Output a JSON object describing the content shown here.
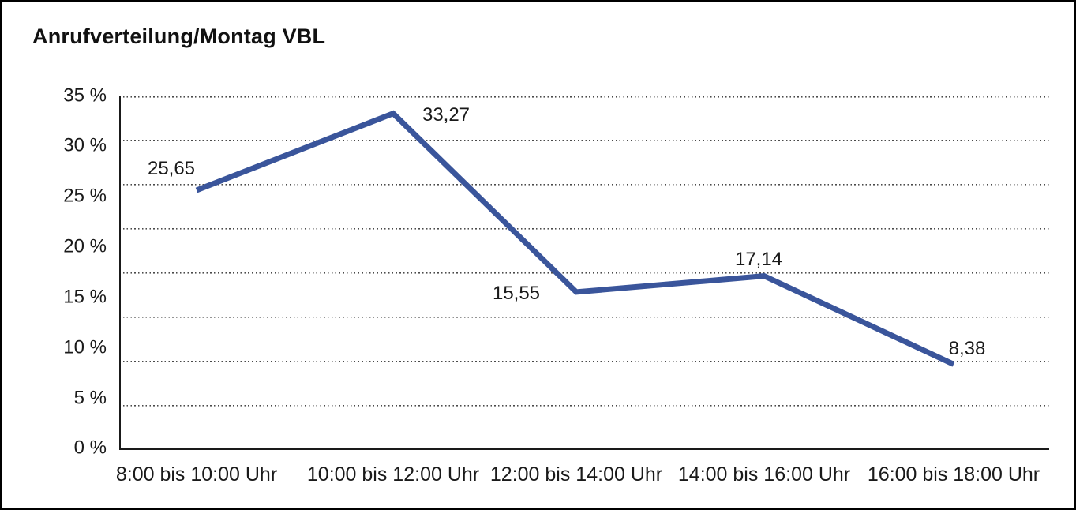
{
  "title": "Anrufverteilung/Montag VBL",
  "chart_data": {
    "type": "line",
    "title": "Anrufverteilung/Montag VBL",
    "categories": [
      "8:00 bis 10:00 Uhr",
      "10:00 bis 12:00 Uhr",
      "12:00 bis 14:00 Uhr",
      "14:00 bis 16:00 Uhr",
      "16:00 bis 18:00 Uhr"
    ],
    "values": [
      25.65,
      33.27,
      15.55,
      17.14,
      8.38
    ],
    "value_labels": [
      "25,65",
      "33,27",
      "15,55",
      "17,14",
      "8,38"
    ],
    "y_ticks": [
      "35 %",
      "30 %",
      "25 %",
      "20 %",
      "15 %",
      "10 %",
      "5 %",
      "0 %"
    ],
    "ylim": [
      0,
      35
    ],
    "xlabel": "",
    "ylabel": "",
    "grid": "dotted-horizontal",
    "legend": "none",
    "line_color": "#3A559B"
  }
}
